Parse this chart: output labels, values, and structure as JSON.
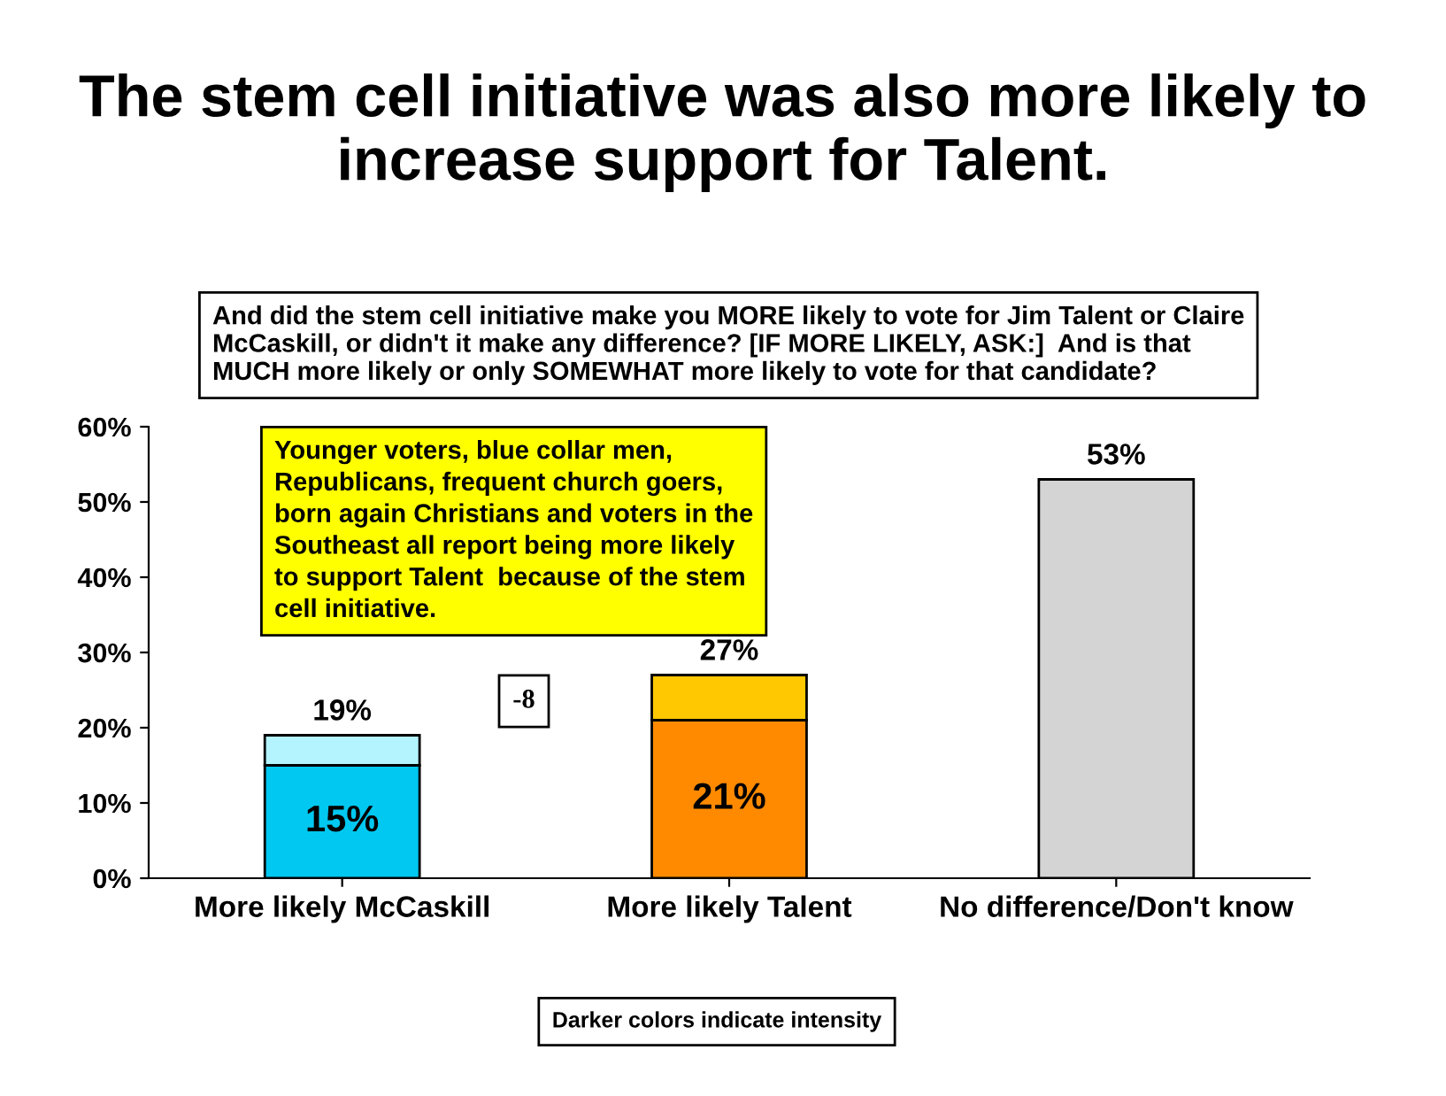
{
  "chart_data": {
    "type": "bar",
    "stacked": true,
    "title": "The stem cell initiative was also more likely to increase support for Talent.",
    "categories": [
      "More likely McCaskill",
      "More likely Talent",
      "No difference/Don't know"
    ],
    "series": [
      {
        "colors": [
          "#00c8f0",
          "#ff8a00",
          "#d4d4d4"
        ],
        "values": [
          15,
          21,
          53
        ],
        "value_labels": [
          "15%",
          "21%",
          null
        ]
      },
      {
        "colors": [
          "#b4f4ff",
          "#ffc800",
          null
        ],
        "values": [
          4,
          6,
          null
        ]
      }
    ],
    "totals": [
      "19%",
      "27%",
      "53%"
    ],
    "ylim": [
      0,
      60
    ],
    "yticks": [
      {
        "value": 0,
        "label": "0%"
      },
      {
        "value": 10,
        "label": "10%"
      },
      {
        "value": 20,
        "label": "20%"
      },
      {
        "value": 30,
        "label": "30%"
      },
      {
        "value": 40,
        "label": "40%"
      },
      {
        "value": 50,
        "label": "50%"
      },
      {
        "value": 60,
        "label": "60%"
      }
    ],
    "annotations": [
      "And did the stem cell initiative make you MORE likely to vote for Jim Talent or Claire\nMcCaskill, or didn't it make any difference? [IF MORE LIKELY, ASK:]  And is that\nMUCH more likely or only SOMEWHAT more likely to vote for that candidate?",
      "Younger voters, blue collar men,\nRepublicans, frequent church goers,\nborn again Christians and voters in the\nSoutheast all report being more likely\nto support Talent  because of the stem\ncell initiative.",
      "-8",
      "Darker colors indicate intensity"
    ]
  }
}
